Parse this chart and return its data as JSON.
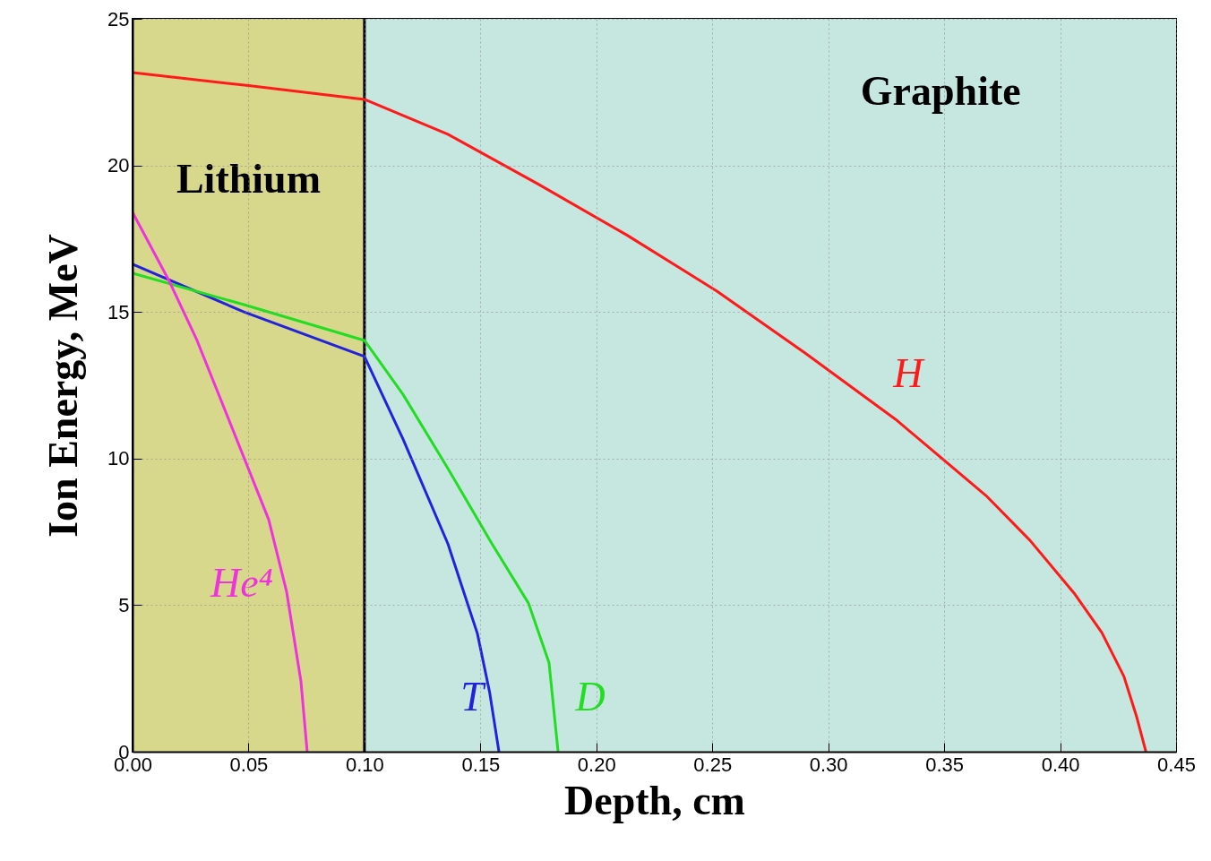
{
  "chart_data": {
    "type": "line",
    "xlabel": "Depth, cm",
    "ylabel": "Ion Energy, MeV",
    "xlim": [
      0,
      0.45
    ],
    "ylim": [
      0,
      25
    ],
    "xticks": [
      {
        "value": 0,
        "label": "0.00"
      },
      {
        "value": 0.05,
        "label": "0.05"
      },
      {
        "value": 0.1,
        "label": "0.10"
      },
      {
        "value": 0.15,
        "label": "0.15"
      },
      {
        "value": 0.2,
        "label": "0.20"
      },
      {
        "value": 0.25,
        "label": "0.25"
      },
      {
        "value": 0.3,
        "label": "0.30"
      },
      {
        "value": 0.35,
        "label": "0.35"
      },
      {
        "value": 0.4,
        "label": "0.40"
      },
      {
        "value": 0.45,
        "label": "0.45"
      }
    ],
    "yticks": [
      0,
      5,
      10,
      15,
      20,
      25
    ],
    "grid": true,
    "legend": false,
    "series": [
      {
        "name": "H",
        "color": "#ff1a1a",
        "x": [
          0,
          0.05,
          0.1,
          0.136,
          0.1745,
          0.213,
          0.252,
          0.29,
          0.329,
          0.368,
          0.387,
          0.406,
          0.418,
          0.4275,
          0.433,
          0.437
        ],
        "values": [
          23.17,
          22.72,
          22.25,
          21.06,
          19.38,
          17.63,
          15.71,
          13.6,
          11.34,
          8.74,
          7.21,
          5.41,
          4.06,
          2.57,
          1.19,
          0
        ]
      },
      {
        "name": "T",
        "color": "#2222dd",
        "x": [
          0,
          0.048,
          0.1,
          0.1166,
          0.136,
          0.1487,
          0.154,
          0.158
        ],
        "values": [
          16.63,
          15.0,
          13.48,
          10.67,
          7.09,
          4.03,
          2.02,
          0
        ]
      },
      {
        "name": "D",
        "color": "#22dd22",
        "x": [
          0,
          0.048,
          0.1,
          0.1166,
          0.136,
          0.155,
          0.1707,
          0.1796,
          0.1835
        ],
        "values": [
          16.32,
          15.25,
          14.03,
          12.19,
          9.66,
          7.09,
          5.07,
          3.03,
          0
        ]
      },
      {
        "name": "He⁴",
        "color": "#ee33dd",
        "x": [
          0,
          0.0155,
          0.0278,
          0.0433,
          0.0587,
          0.0664,
          0.0726,
          0.0753
        ],
        "values": [
          18.4,
          16.1,
          14.03,
          10.97,
          7.92,
          5.47,
          2.41,
          0
        ]
      }
    ],
    "bands": [
      {
        "axis": "x",
        "from": 0,
        "to": 0.1,
        "color": "#d8d88c",
        "label": "Lithium"
      },
      {
        "axis": "x",
        "from": 0.1,
        "to": 0.45,
        "color": "#c6e6e0",
        "label": "Graphite"
      }
    ],
    "ref_lines": [
      {
        "axis": "x",
        "value": 0.1,
        "color": "#000000"
      }
    ]
  }
}
